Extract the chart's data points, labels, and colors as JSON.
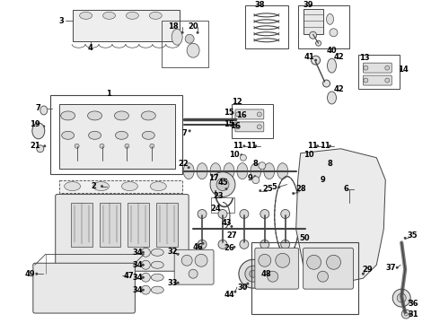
{
  "bg_color": "#ffffff",
  "line_color": "#444444",
  "label_color": "#000000",
  "fig_width": 4.9,
  "fig_height": 3.6,
  "dpi": 100
}
